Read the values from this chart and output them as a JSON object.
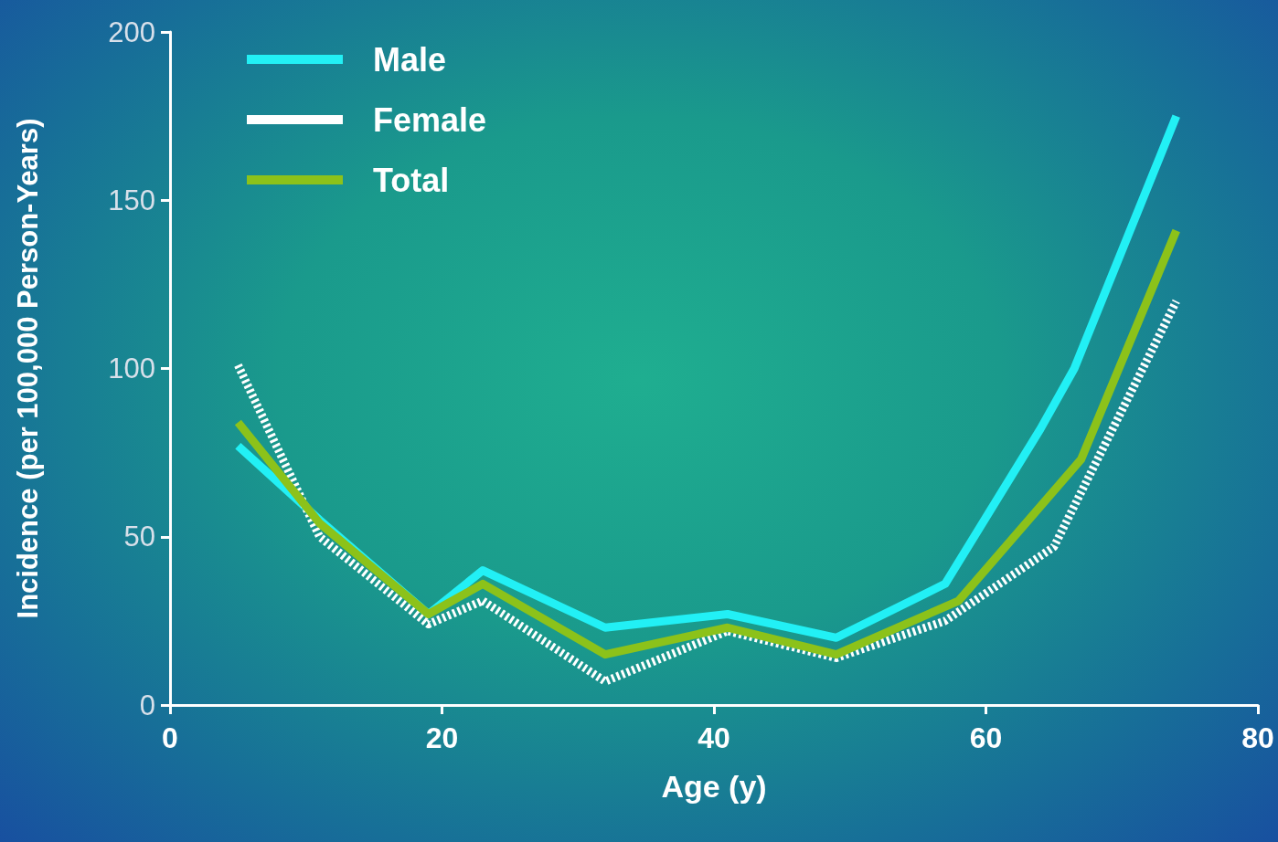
{
  "chart_data": {
    "type": "line",
    "xlabel": "Age (y)",
    "ylabel": "Incidence (per 100,000 Person-Years)",
    "xlim": [
      0,
      80
    ],
    "xticks": [
      0,
      20,
      40,
      60,
      80
    ],
    "ylim": [
      0,
      200
    ],
    "yticks": [
      0,
      50,
      100,
      150,
      200
    ],
    "grid": false,
    "legend": "top left",
    "marker": "none",
    "line_style": "solid",
    "series": [
      {
        "name": "Male",
        "color": "#22f0f5",
        "x": [
          5,
          11,
          19,
          23,
          32,
          41,
          49,
          57,
          64,
          66.5,
          74
        ],
        "values": [
          77,
          55,
          27,
          40,
          23,
          27,
          20,
          36,
          82,
          100,
          175
        ]
      },
      {
        "name": "Female",
        "color": "#ffffff",
        "line_style": "dotted",
        "x": [
          5,
          11,
          19,
          23,
          32,
          41,
          49,
          57,
          65,
          74
        ],
        "values": [
          101,
          50,
          24,
          31,
          7,
          22,
          14,
          25,
          47,
          120
        ]
      },
      {
        "name": "Total",
        "color": "#8cc21a",
        "x": [
          5,
          11,
          19,
          23,
          32,
          41,
          49,
          58,
          67,
          74
        ],
        "values": [
          84,
          54,
          27,
          36,
          15,
          23,
          15,
          31,
          73,
          141
        ]
      }
    ]
  }
}
